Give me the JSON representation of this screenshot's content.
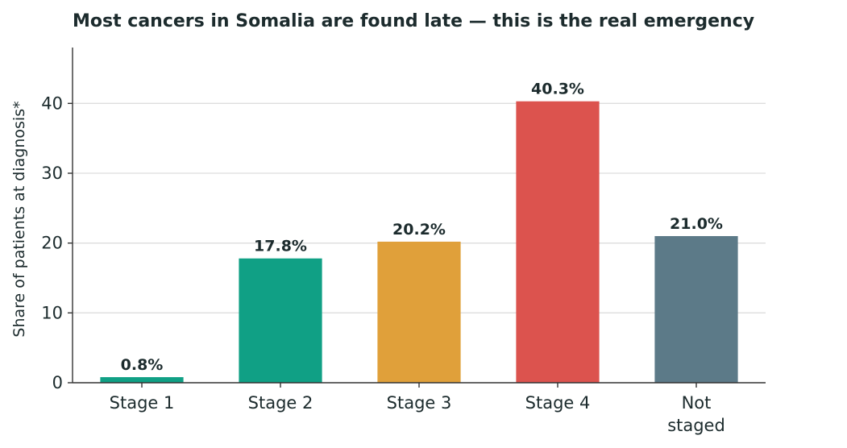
{
  "chart_data": {
    "type": "bar",
    "title": "Most cancers in Somalia are found late — this is the real emergency",
    "ylabel": "Share of patients at diagnosis*",
    "xlabel": "",
    "categories": [
      "Stage 1",
      "Stage 2",
      "Stage 3",
      "Stage 4",
      "Not staged"
    ],
    "category_lines": [
      [
        "Stage 1"
      ],
      [
        "Stage 2"
      ],
      [
        "Stage 3"
      ],
      [
        "Stage 4"
      ],
      [
        "Not",
        "staged"
      ]
    ],
    "values": [
      0.8,
      17.8,
      20.2,
      40.3,
      21.0
    ],
    "data_labels": [
      "0.8%",
      "17.8%",
      "20.2%",
      "40.3%",
      "21.0%"
    ],
    "colors": [
      "#10a085",
      "#10a085",
      "#e0a03a",
      "#dc534e",
      "#5c7a88"
    ],
    "ylim": [
      0,
      48
    ],
    "yticks": [
      0,
      10,
      20,
      30,
      40
    ],
    "grid": true,
    "legend": "none"
  }
}
